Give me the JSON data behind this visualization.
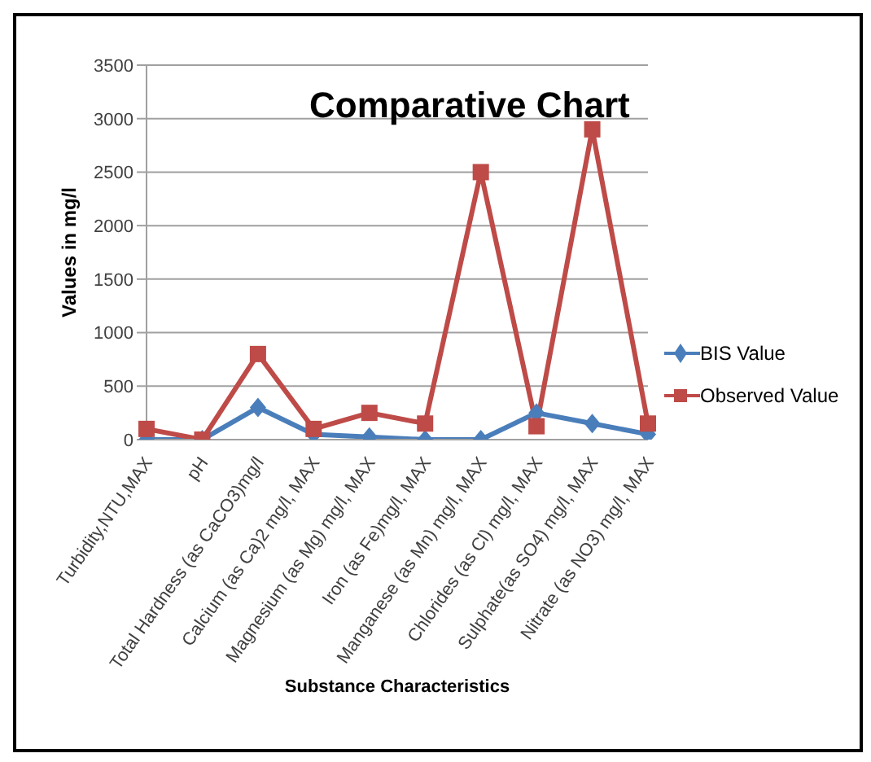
{
  "chart_data": {
    "type": "line",
    "title": "Comparative Chart",
    "xlabel": "Substance Characteristics",
    "ylabel": "Values in mg/l",
    "categories": [
      "Turbidity,NTU,MAX",
      "pH",
      "Total Hardness (as CaCO3)mg/l",
      "Calcium (as Ca)2 mg/l, MAX",
      "Magnesium (as Mg) mg/l, MAX",
      "Iron (as Fe)mg/l, MAX",
      "Manganese (as Mn) mg/l, MAX",
      "Chlorides (as Cl) mg/l, MAX",
      "Sulphate(as SO4) mg/l, MAX",
      "Nitrate (as NO3) mg/l, MAX"
    ],
    "series": [
      {
        "name": "BIS Value",
        "color": "#4a7ebb",
        "marker": "diamond",
        "values": [
          0,
          0,
          300,
          50,
          25,
          0,
          0,
          250,
          150,
          50
        ]
      },
      {
        "name": "Observed Value",
        "color": "#be4b48",
        "marker": "square",
        "values": [
          100,
          0,
          800,
          100,
          250,
          150,
          2500,
          125,
          2900,
          150
        ]
      }
    ],
    "ylim": [
      0,
      3500
    ],
    "yticks": [
      0,
      500,
      1000,
      1500,
      2000,
      2500,
      3000,
      3500
    ],
    "grid": "y",
    "legend": "right"
  }
}
